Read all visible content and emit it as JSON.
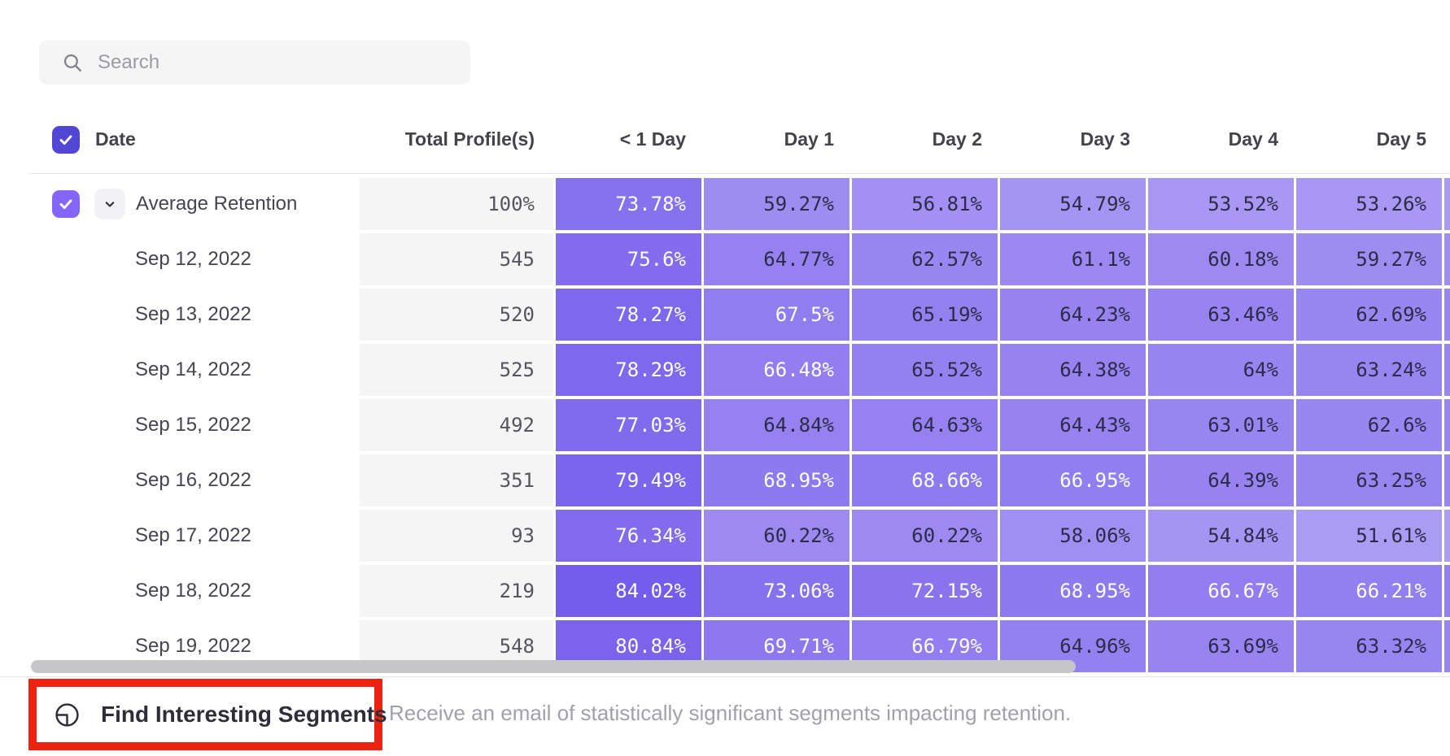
{
  "search": {
    "placeholder": "Search"
  },
  "table": {
    "columns": {
      "date": "Date",
      "total": "Total Profile(s)",
      "days": [
        "< 1 Day",
        "Day 1",
        "Day 2",
        "Day 3",
        "Day 4",
        "Day 5"
      ]
    },
    "rows": [
      {
        "label": "Average Retention",
        "total": "100%",
        "expandable": true,
        "checked": true,
        "cells": [
          "73.78%",
          "59.27%",
          "56.81%",
          "54.79%",
          "53.52%",
          "53.26%"
        ]
      },
      {
        "label": "Sep 12, 2022",
        "total": "545",
        "cells": [
          "75.6%",
          "64.77%",
          "62.57%",
          "61.1%",
          "60.18%",
          "59.27%"
        ]
      },
      {
        "label": "Sep 13, 2022",
        "total": "520",
        "cells": [
          "78.27%",
          "67.5%",
          "65.19%",
          "64.23%",
          "63.46%",
          "62.69%"
        ]
      },
      {
        "label": "Sep 14, 2022",
        "total": "525",
        "cells": [
          "78.29%",
          "66.48%",
          "65.52%",
          "64.38%",
          "64%",
          "63.24%"
        ]
      },
      {
        "label": "Sep 15, 2022",
        "total": "492",
        "cells": [
          "77.03%",
          "64.84%",
          "64.63%",
          "64.43%",
          "63.01%",
          "62.6%"
        ]
      },
      {
        "label": "Sep 16, 2022",
        "total": "351",
        "cells": [
          "79.49%",
          "68.95%",
          "68.66%",
          "66.95%",
          "64.39%",
          "63.25%"
        ]
      },
      {
        "label": "Sep 17, 2022",
        "total": "93",
        "cells": [
          "76.34%",
          "60.22%",
          "60.22%",
          "58.06%",
          "54.84%",
          "51.61%"
        ]
      },
      {
        "label": "Sep 18, 2022",
        "total": "219",
        "cells": [
          "84.02%",
          "73.06%",
          "72.15%",
          "68.95%",
          "66.67%",
          "66.21%"
        ]
      },
      {
        "label": "Sep 19, 2022",
        "total": "548",
        "cells": [
          "80.84%",
          "69.71%",
          "66.79%",
          "64.96%",
          "63.69%",
          "63.32%"
        ]
      }
    ]
  },
  "footer": {
    "button_label": "Find Interesting Segments",
    "description": "Receive an email of statistically significant segments impacting retention."
  },
  "colors": {
    "heat_base_rgb": "91,62,232",
    "heat_dark_text": "#2f2a4a",
    "heat_light_text": "#ffffff",
    "white_text_threshold": 66,
    "header_checkbox": "#5247d5",
    "row_checkbox": "#8466fa",
    "annotation_red": "#ee2211"
  }
}
